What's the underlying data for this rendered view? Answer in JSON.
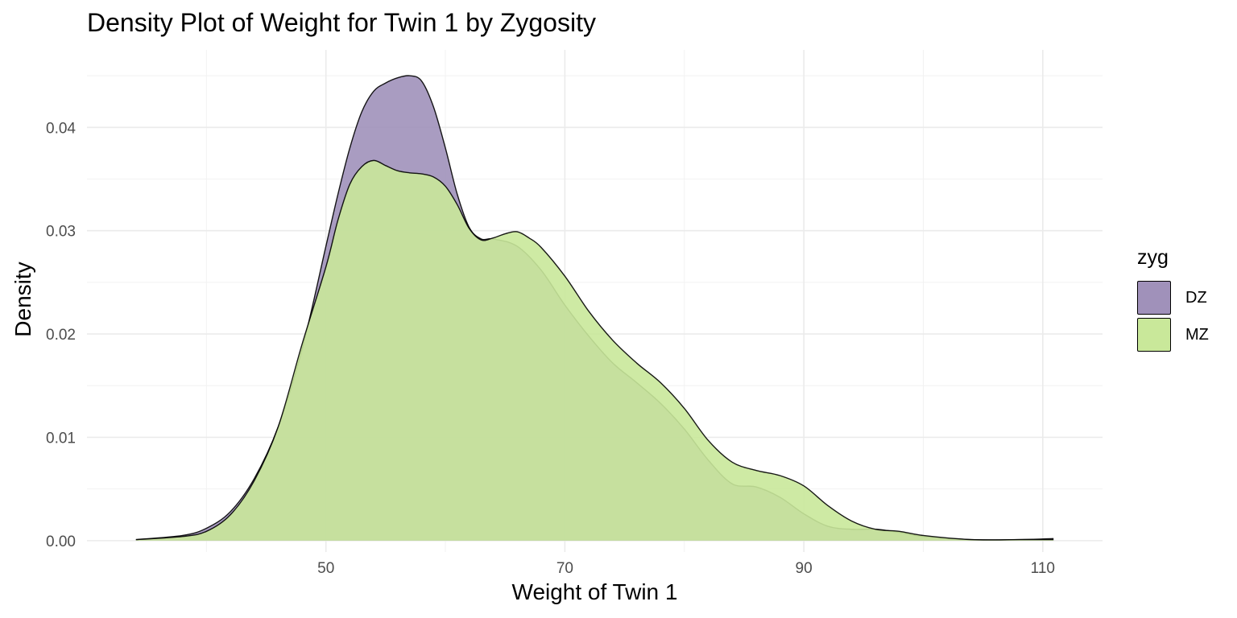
{
  "title": "Density Plot of Weight for Twin 1 by Zygosity",
  "chart_data": {
    "type": "area",
    "title": "Density Plot of Weight for Twin 1 by Zygosity",
    "xlabel": "Weight of Twin 1",
    "ylabel": "Density",
    "xlim": [
      30,
      115
    ],
    "ylim": [
      -0.0011,
      0.0475
    ],
    "x_ticks": [
      50,
      70,
      90,
      110
    ],
    "x_tick_labels": [
      "50",
      "70",
      "90",
      "110"
    ],
    "y_ticks": [
      0,
      0.01,
      0.02,
      0.03,
      0.04
    ],
    "y_tick_labels": [
      "0.00",
      "0.01",
      "0.02",
      "0.03",
      "0.04"
    ],
    "grid": true,
    "legend": {
      "title": "zyg",
      "position": "right"
    },
    "series": [
      {
        "name": "DZ",
        "color": "#a091ba",
        "x": [
          34.1,
          38,
          40,
          42,
          44,
          46,
          48,
          50,
          51,
          52,
          53,
          54,
          55,
          56,
          57,
          58,
          59,
          60,
          61,
          62,
          63,
          64,
          66,
          68,
          70,
          72,
          74,
          76,
          78,
          80,
          82,
          84,
          86,
          88,
          90,
          92,
          94,
          96,
          98,
          100,
          104,
          108,
          110.9
        ],
        "values": [
          0.0001,
          0.0005,
          0.0012,
          0.0028,
          0.006,
          0.011,
          0.0185,
          0.0285,
          0.0335,
          0.038,
          0.0415,
          0.0435,
          0.0443,
          0.0448,
          0.045,
          0.0445,
          0.042,
          0.038,
          0.0335,
          0.0303,
          0.0292,
          0.0292,
          0.0285,
          0.0262,
          0.0228,
          0.0198,
          0.0172,
          0.0153,
          0.0133,
          0.0108,
          0.0078,
          0.0055,
          0.0052,
          0.0042,
          0.0026,
          0.0014,
          0.0011,
          0.0011,
          0.0008,
          0.0004,
          0.0001,
          0.0001,
          0.0002
        ]
      },
      {
        "name": "MZ",
        "color": "#c9e89a",
        "x": [
          34.1,
          38,
          40,
          42,
          44,
          46,
          48,
          50,
          51,
          52,
          53,
          54,
          55,
          56,
          57,
          58,
          59,
          60,
          61,
          62,
          63,
          64,
          65,
          66,
          67,
          68,
          70,
          72,
          74,
          76,
          78,
          80,
          82,
          84,
          86,
          88,
          90,
          92,
          94,
          96,
          98,
          100,
          104,
          108,
          110.9
        ],
        "values": [
          0.0001,
          0.0004,
          0.0009,
          0.0025,
          0.0058,
          0.011,
          0.019,
          0.0265,
          0.031,
          0.0345,
          0.0362,
          0.0368,
          0.0363,
          0.0358,
          0.0356,
          0.0355,
          0.0352,
          0.0343,
          0.0325,
          0.0302,
          0.0291,
          0.0293,
          0.0297,
          0.0299,
          0.0293,
          0.0284,
          0.0256,
          0.0222,
          0.0194,
          0.0172,
          0.0153,
          0.0128,
          0.0097,
          0.0076,
          0.0068,
          0.0063,
          0.0053,
          0.0034,
          0.0019,
          0.0011,
          0.0009,
          0.0005,
          0.0001,
          0.0001,
          0.0001
        ]
      }
    ]
  }
}
